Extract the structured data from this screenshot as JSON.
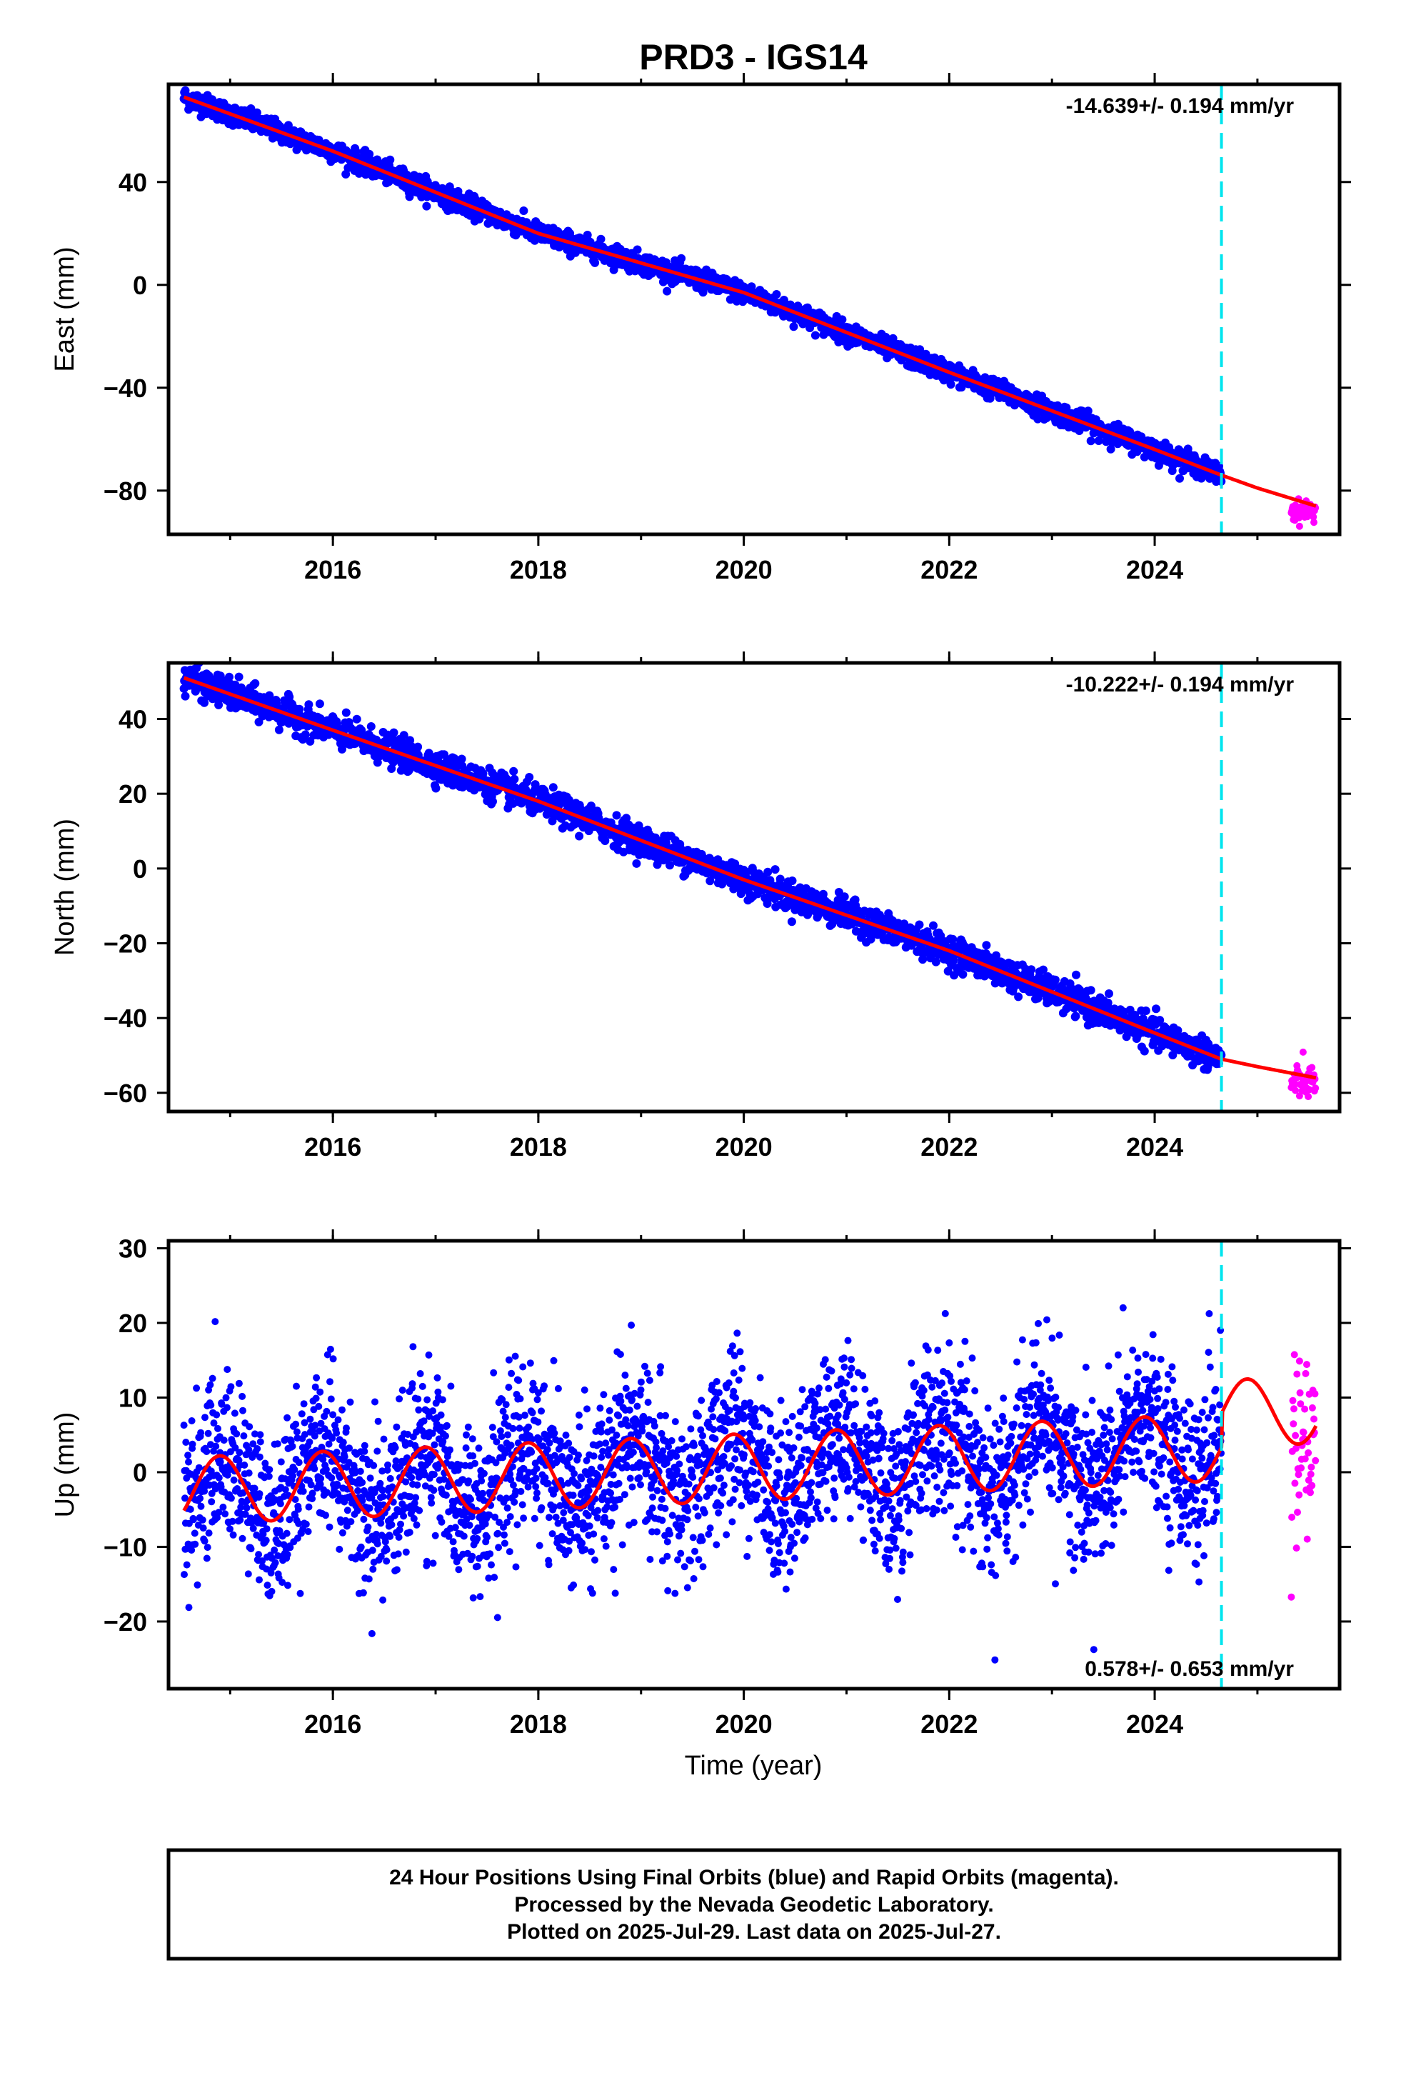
{
  "title": "PRD3 - IGS14",
  "xlabel": "Time (year)",
  "colors": {
    "final": "#0000ff",
    "rapid": "#ff00ff",
    "model": "#ff0000",
    "break": "#00e5ee"
  },
  "footer": [
    "24 Hour Positions Using Final Orbits (blue) and Rapid Orbits (magenta).",
    "Processed by the Nevada Geodetic Laboratory.",
    "Plotted on 2025-Jul-29. Last data on 2025-Jul-27."
  ],
  "chart_data": [
    {
      "type": "scatter",
      "component": "East",
      "ylabel": "East (mm)",
      "rate_label": "-14.639+/- 0.194 mm/yr",
      "rate_position": "top-right",
      "xlim": [
        2014.4,
        2025.8
      ],
      "ylim": [
        -97,
        78
      ],
      "xticks": [
        2016,
        2018,
        2020,
        2022,
        2024
      ],
      "yticks": [
        -80,
        -40,
        0,
        40
      ],
      "equipment_change_year": 2024.65,
      "final_series": {
        "x_start": 2014.55,
        "x_end": 2024.65,
        "y_start": 73,
        "y_end": -75,
        "scatter_mm": 2.0
      },
      "rapid_series": {
        "x_start": 2025.33,
        "x_end": 2025.57,
        "y_center": -88,
        "scatter_mm": 2.0
      },
      "model_line": {
        "x": [
          2014.55,
          2016,
          2018,
          2020,
          2022,
          2024,
          2024.65,
          2025,
          2025.57
        ],
        "y": [
          73,
          52,
          20,
          -3,
          -34,
          -64,
          -74,
          -79,
          -86
        ]
      }
    },
    {
      "type": "scatter",
      "component": "North",
      "ylabel": "North (mm)",
      "rate_label": "-10.222+/- 0.194 mm/yr",
      "rate_position": "top-right",
      "xlim": [
        2014.4,
        2025.8
      ],
      "ylim": [
        -65,
        55
      ],
      "xticks": [
        2016,
        2018,
        2020,
        2022,
        2024
      ],
      "yticks": [
        -60,
        -40,
        -20,
        0,
        20,
        40
      ],
      "equipment_change_year": 2024.65,
      "final_series": {
        "x_start": 2014.55,
        "x_end": 2024.65,
        "y_start": 52,
        "y_end": -51,
        "scatter_mm": 2.0
      },
      "rapid_series": {
        "x_start": 2025.33,
        "x_end": 2025.57,
        "y_center": -57,
        "scatter_mm": 2.2
      },
      "model_line": {
        "x": [
          2014.55,
          2016,
          2018,
          2020,
          2022,
          2024,
          2024.65,
          2025,
          2025.57
        ],
        "y": [
          51,
          37,
          18,
          -3,
          -22,
          -44,
          -51,
          -53,
          -56
        ]
      }
    },
    {
      "type": "scatter",
      "component": "Up",
      "ylabel": "Up (mm)",
      "rate_label": "0.578+/- 0.653 mm/yr",
      "rate_position": "bottom-right",
      "xlim": [
        2014.4,
        2025.8
      ],
      "ylim": [
        -29,
        31
      ],
      "xticks": [
        2016,
        2018,
        2020,
        2022,
        2024
      ],
      "yticks": [
        -20,
        -10,
        0,
        10,
        20,
        30
      ],
      "equipment_change_year": 2024.65,
      "final_series": {
        "x_start": 2014.55,
        "x_end": 2024.65,
        "y_start": -1,
        "y_end": 3,
        "scatter_mm": 5.5,
        "seasonal_amplitude_mm": 4.5
      },
      "rapid_series": {
        "x_start": 2025.33,
        "x_end": 2025.57,
        "y_center": 2,
        "scatter_mm": 7
      },
      "model_line": {
        "offset_at_start": -2.5,
        "rate_mm_yr": 0.578,
        "annual_amplitude_mm": 4.5,
        "annual_peak_year_fraction": 0.9,
        "jump_at_break_mm": 4.5
      }
    }
  ]
}
